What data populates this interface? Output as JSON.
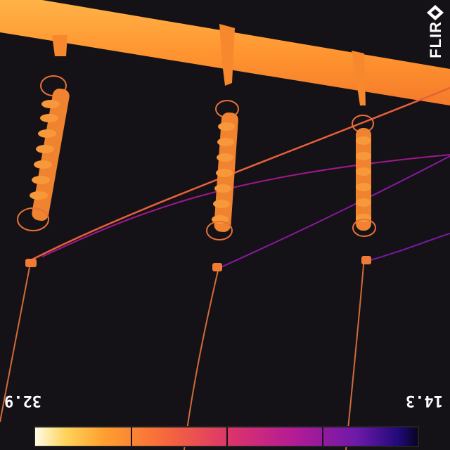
{
  "thermal_view": {
    "temp_max": "32.9",
    "temp_min": "14.3",
    "brand": "FLIR",
    "palette": [
      "#fffbe4",
      "#ffd35a",
      "#ff9f30",
      "#f6683c",
      "#d9326d",
      "#b21b96",
      "#6d1aa8",
      "#22097a",
      "#080421"
    ],
    "scale_segments": 4
  }
}
